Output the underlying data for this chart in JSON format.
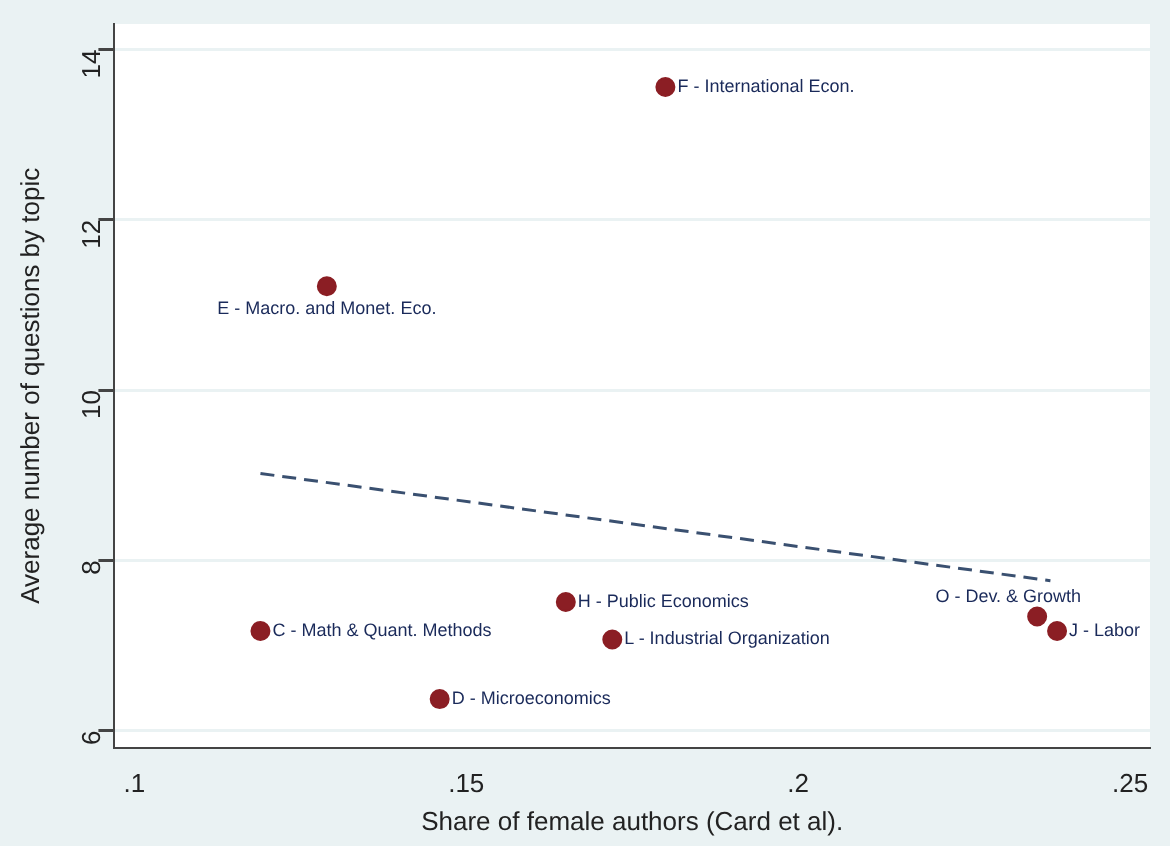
{
  "chart_data": {
    "type": "scatter",
    "xlabel": "Share of female authors (Card et al).",
    "ylabel": "Average number of questions by topic",
    "xlim": [
      0.097,
      0.253
    ],
    "xticks": [
      {
        "value": 0.1,
        "label": ".1"
      },
      {
        "value": 0.15,
        "label": ".15"
      },
      {
        "value": 0.2,
        "label": ".2"
      },
      {
        "value": 0.25,
        "label": ".25"
      }
    ],
    "ylim": [
      5.8,
      14.3
    ],
    "yticks": [
      6,
      8,
      10,
      12,
      14
    ],
    "grid": "y",
    "legend": false,
    "marker": "circle",
    "series": [
      {
        "color": "#8b1e24",
        "x": [
          0.18,
          0.129,
          0.119,
          0.146,
          0.165,
          0.172,
          0.236,
          0.239
        ],
        "values": [
          13.56,
          11.22,
          7.17,
          6.37,
          7.51,
          7.07,
          7.34,
          7.17
        ]
      },
      {
        "type": "line",
        "line_style": "dashed",
        "marker": "none",
        "color": "#3a5070",
        "x": [
          0.119,
          0.238
        ],
        "values": [
          9.02,
          7.76
        ]
      }
    ],
    "annotations": [
      {
        "text": "F - International Econ.",
        "x": 0.18,
        "y": 13.56
      },
      {
        "text": "E - Macro. and Monet. Eco.",
        "x": 0.129,
        "y": 11.22
      },
      {
        "text": "C - Math & Quant. Methods",
        "x": 0.119,
        "y": 7.17
      },
      {
        "text": "D - Microeconomics",
        "x": 0.146,
        "y": 6.37
      },
      {
        "text": "H - Public Economics",
        "x": 0.165,
        "y": 7.51
      },
      {
        "text": "L - Industrial Organization",
        "x": 0.172,
        "y": 7.07
      },
      {
        "text": "O - Dev. & Growth",
        "x": 0.236,
        "y": 7.34
      },
      {
        "text": "J - Labor",
        "x": 0.239,
        "y": 7.17
      }
    ]
  }
}
